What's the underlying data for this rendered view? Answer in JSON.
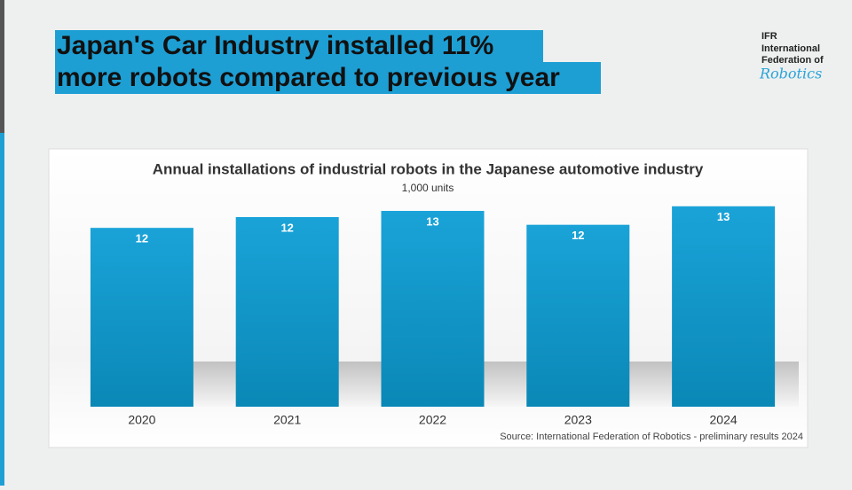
{
  "header": {
    "title_lines": [
      "Japan's Car Industry installed 11%",
      "more robots compared to previous year"
    ]
  },
  "logo": {
    "lines": [
      "IFR",
      "International",
      "Federation of"
    ],
    "script": "Robotics"
  },
  "chart_data": {
    "type": "bar",
    "title": "Annual installations of industrial robots in the Japanese automotive industry",
    "subtitle": "1,000 units",
    "categories": [
      "2020",
      "2021",
      "2022",
      "2023",
      "2024"
    ],
    "values": [
      11.6,
      12.3,
      12.7,
      11.8,
      13.0
    ],
    "value_labels": [
      "12",
      "12",
      "13",
      "12",
      "13"
    ],
    "color": "#119ad0",
    "source": "Source: International Federation of Robotics - preliminary results 2024"
  }
}
